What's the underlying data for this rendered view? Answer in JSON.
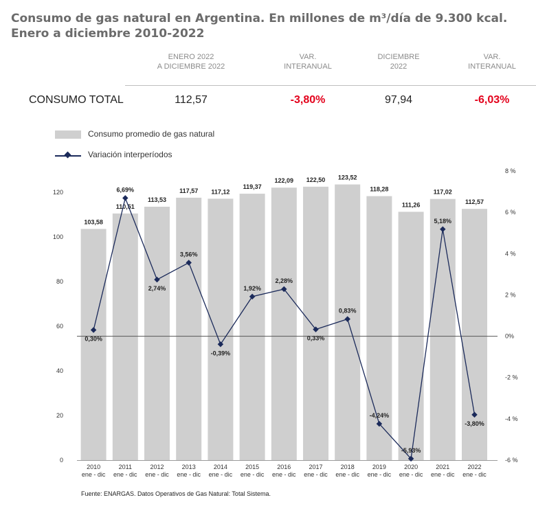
{
  "title": {
    "line1": "Consumo de gas natural en Argentina. En millones de m³/día de 9.300 kcal.",
    "line2": "Enero a diciembre 2010-2022"
  },
  "summary": {
    "row_label": "CONSUMO TOTAL",
    "columns": [
      {
        "header1": "ENERO 2022",
        "header2": "A DICIEMBRE 2022",
        "value": "112,57",
        "negative": false
      },
      {
        "header1": "VAR.",
        "header2": "INTERANUAL",
        "value": "-3,80%",
        "negative": true
      },
      {
        "header1": "DICIEMBRE",
        "header2": "2022",
        "value": "97,94",
        "negative": false
      },
      {
        "header1": "VAR.",
        "header2": "INTERANUAL",
        "value": "-6,03%",
        "negative": true
      }
    ]
  },
  "legend": {
    "bars": "Consumo promedio de gas natural",
    "line": "Variación interperíodos"
  },
  "source": "Fuente: ENARGAS. Datos Operativos de Gas Natural: Total Sistema.",
  "colors": {
    "bar": "#cfcfcf",
    "line": "#1b2a5a",
    "negative": "#e3001b",
    "zero_line": "#555555"
  },
  "chart_data": {
    "type": "bar",
    "categories": [
      "2010",
      "2011",
      "2012",
      "2013",
      "2014",
      "2015",
      "2016",
      "2017",
      "2018",
      "2019",
      "2020",
      "2021",
      "2022"
    ],
    "category_sublabel": "ene - dic",
    "series": [
      {
        "name": "Consumo promedio de gas natural",
        "axis": "left",
        "values": [
          103.58,
          110.51,
          113.53,
          117.57,
          117.12,
          119.37,
          122.09,
          122.5,
          123.52,
          118.28,
          111.26,
          117.02,
          112.57
        ],
        "labels": [
          "103,58",
          "110,51",
          "113,53",
          "117,57",
          "117,12",
          "119,37",
          "122,09",
          "122,50",
          "123,52",
          "118,28",
          "111,26",
          "117,02",
          "112,57"
        ]
      },
      {
        "name": "Variación interperíodos",
        "type": "line",
        "axis": "right",
        "values": [
          0.3,
          6.69,
          2.74,
          3.56,
          -0.39,
          1.92,
          2.28,
          0.33,
          0.83,
          -4.24,
          -5.93,
          5.18,
          -3.8
        ],
        "labels": [
          "0,30%",
          "6,69%",
          "2,74%",
          "3,56%",
          "-0,39%",
          "1,92%",
          "2,28%",
          "0,33%",
          "0,83%",
          "-4,24%",
          "-5,93%",
          "5,18%",
          "-3,80%"
        ]
      }
    ],
    "y_left": {
      "range": [
        0,
        128
      ],
      "ticks": [
        0,
        20,
        40,
        60,
        80,
        100,
        120
      ],
      "tick_labels": [
        "0",
        "20",
        "40",
        "60",
        "80",
        "100",
        "120"
      ]
    },
    "y_right": {
      "range": [
        -6,
        8
      ],
      "ticks": [
        -6,
        -4,
        -2,
        0,
        2,
        4,
        6,
        8
      ],
      "tick_labels": [
        "-6 %",
        "-4 %",
        "-2 %",
        "0%",
        "2 %",
        "4 %",
        "6 %",
        "8 %"
      ]
    },
    "grid": false,
    "legend_position": "top-left"
  }
}
